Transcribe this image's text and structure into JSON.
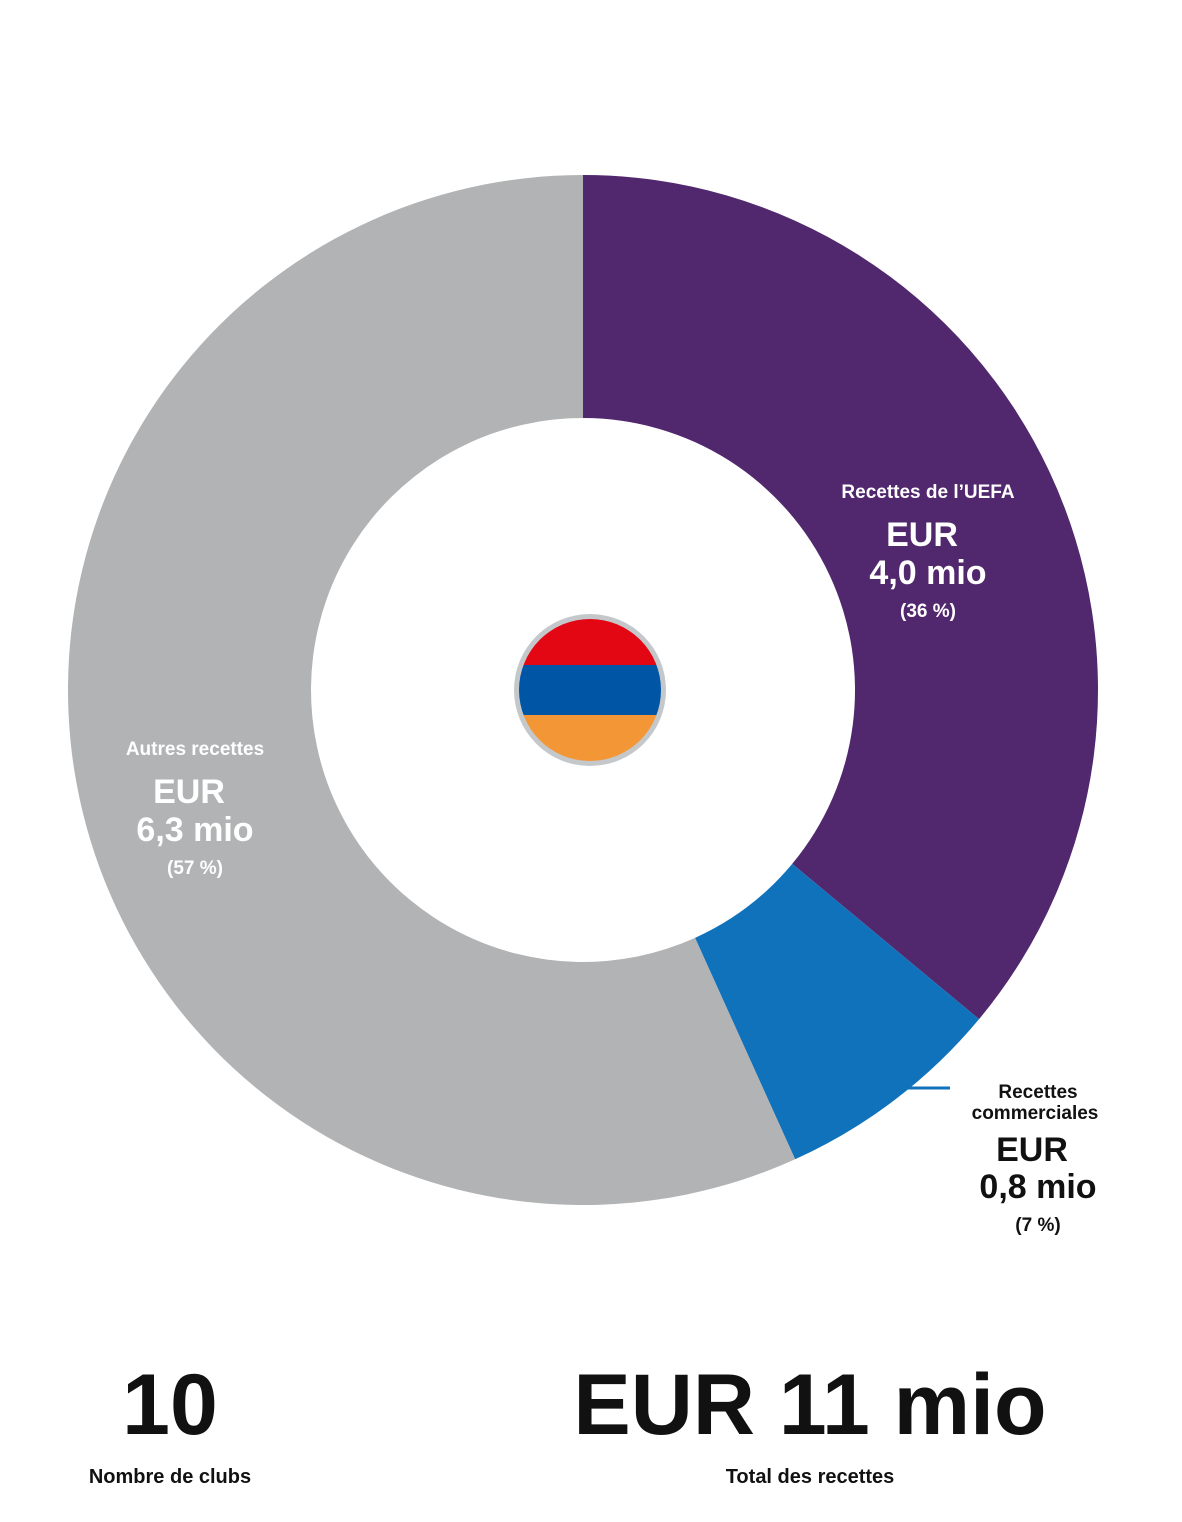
{
  "chart_data": {
    "type": "pie",
    "style": "donut",
    "categories": [
      "Recettes de l’UEFA",
      "Recettes commerciales",
      "Autres recettes"
    ],
    "values": [
      4.0,
      0.8,
      6.3
    ],
    "value_labels": [
      "EUR",
      "EUR",
      "EUR"
    ],
    "amount_labels": [
      "4,0 mio",
      "0,8 mio",
      "6,3 mio"
    ],
    "percent_labels": [
      "(36 %)",
      "(7 %)",
      "(57 %)"
    ],
    "percents": [
      36,
      7,
      57
    ],
    "colors": [
      "#51286e",
      "#1172bc",
      "#b1b3b4"
    ],
    "label_colors": [
      "#ffffff",
      "#111111",
      "#ffffff"
    ]
  },
  "flag": {
    "icon": "armenia-flag-icon",
    "colors": [
      "#e30613",
      "#0055a5",
      "#f39636"
    ],
    "ring_color": "#c5c8ca"
  },
  "stats": {
    "clubs_value": "10",
    "clubs_label": "Nombre de clubs",
    "revenue_value": "EUR 11 mio",
    "revenue_label": "Total des recettes"
  }
}
